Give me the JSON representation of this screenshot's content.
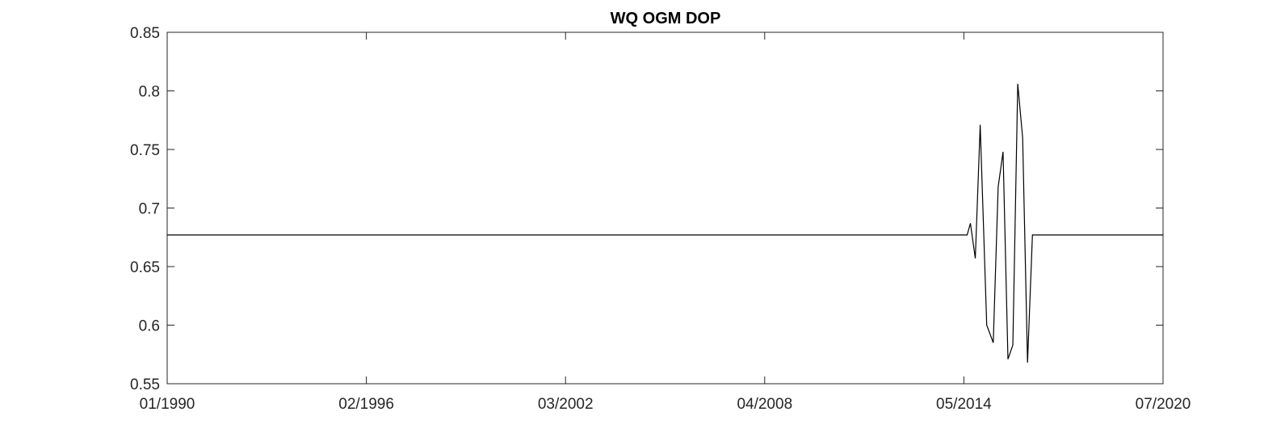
{
  "chart_data": {
    "type": "line",
    "title": "WQ OGM DOP",
    "xlabel": "",
    "ylabel": "",
    "xlim": [
      1990.0,
      2020.5
    ],
    "ylim": [
      0.55,
      0.85
    ],
    "x_ticks": [
      {
        "value": 1990.0,
        "label": "01/1990"
      },
      {
        "value": 1996.1,
        "label": "02/1996"
      },
      {
        "value": 2002.2,
        "label": "03/2002"
      },
      {
        "value": 2008.3,
        "label": "04/2008"
      },
      {
        "value": 2014.4,
        "label": "05/2014"
      },
      {
        "value": 2020.5,
        "label": "07/2020"
      }
    ],
    "y_ticks": [
      {
        "value": 0.55,
        "label": "0.55"
      },
      {
        "value": 0.6,
        "label": "0.6"
      },
      {
        "value": 0.65,
        "label": "0.65"
      },
      {
        "value": 0.7,
        "label": "0.7"
      },
      {
        "value": 0.75,
        "label": "0.75"
      },
      {
        "value": 0.8,
        "label": "0.8"
      },
      {
        "value": 0.85,
        "label": "0.85"
      }
    ],
    "grid": false,
    "series": [
      {
        "name": "DOP",
        "color": "#000000",
        "x": [
          1990.0,
          2014.5,
          2014.6,
          2014.75,
          2014.9,
          2015.1,
          2015.3,
          2015.45,
          2015.6,
          2015.75,
          2015.9,
          2016.05,
          2016.2,
          2016.35,
          2016.5,
          2016.6,
          2020.5
        ],
        "y": [
          0.677,
          0.677,
          0.687,
          0.657,
          0.771,
          0.6,
          0.585,
          0.718,
          0.748,
          0.571,
          0.583,
          0.806,
          0.76,
          0.568,
          0.677,
          0.677,
          0.677
        ]
      }
    ]
  }
}
